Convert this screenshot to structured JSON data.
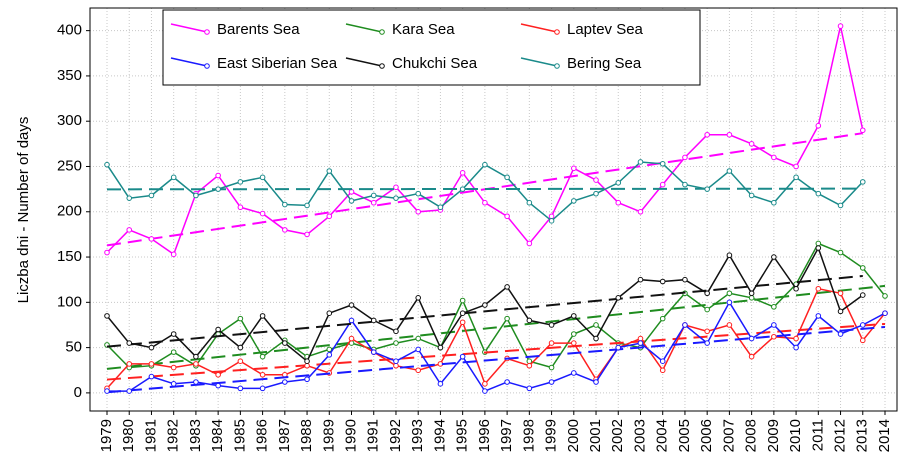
{
  "chart_data": {
    "type": "line",
    "y_label": "Liczba dni - Number of days",
    "categories": [
      "1979",
      "1980",
      "1981",
      "1982",
      "1983",
      "1984",
      "1985",
      "1986",
      "1987",
      "1988",
      "1989",
      "1990",
      "1991",
      "1992",
      "1993",
      "1994",
      "1995",
      "1996",
      "1997",
      "1998",
      "1999",
      "2000",
      "2001",
      "2002",
      "2003",
      "2004",
      "2005",
      "2006",
      "2007",
      "2008",
      "2009",
      "2010",
      "2011",
      "2012",
      "2013",
      "2014"
    ],
    "ylim": [
      -20,
      425
    ],
    "yticks": [
      0,
      50,
      100,
      150,
      200,
      250,
      300,
      350,
      400
    ],
    "grid": true,
    "trend_lines": true,
    "legend": "top",
    "series": [
      {
        "name": "Barents Sea",
        "color": "#ff00ff",
        "values": [
          155,
          180,
          170,
          153,
          220,
          240,
          205,
          198,
          180,
          175,
          195,
          222,
          210,
          227,
          200,
          202,
          243,
          210,
          195,
          165,
          195,
          248,
          235,
          210,
          200,
          230,
          260,
          285,
          285,
          275,
          260,
          250,
          295,
          405,
          290,
          null
        ]
      },
      {
        "name": "Kara Sea",
        "color": "#1f8c1f",
        "values": [
          53,
          28,
          30,
          45,
          30,
          65,
          82,
          40,
          58,
          40,
          48,
          55,
          48,
          55,
          60,
          50,
          102,
          45,
          82,
          35,
          28,
          65,
          75,
          55,
          50,
          82,
          110,
          92,
          110,
          105,
          95,
          120,
          165,
          155,
          138,
          107
        ]
      },
      {
        "name": "Laptev Sea",
        "color": "#ff2020",
        "values": [
          5,
          32,
          32,
          28,
          32,
          20,
          35,
          20,
          20,
          30,
          22,
          60,
          45,
          30,
          25,
          32,
          78,
          10,
          38,
          30,
          55,
          55,
          15,
          50,
          60,
          25,
          75,
          68,
          75,
          40,
          62,
          60,
          115,
          110,
          58,
          88
        ]
      },
      {
        "name": "East Siberian Sea",
        "color": "#1a1aff",
        "values": [
          2,
          2,
          18,
          10,
          12,
          8,
          5,
          5,
          12,
          15,
          42,
          80,
          45,
          35,
          48,
          10,
          40,
          2,
          12,
          5,
          12,
          22,
          12,
          50,
          55,
          35,
          75,
          55,
          100,
          60,
          75,
          50,
          85,
          65,
          75,
          88
        ]
      },
      {
        "name": "Chukchi Sea",
        "color": "#111111",
        "values": [
          85,
          55,
          50,
          65,
          40,
          70,
          50,
          85,
          55,
          35,
          88,
          97,
          80,
          68,
          105,
          50,
          88,
          97,
          117,
          80,
          75,
          85,
          60,
          105,
          125,
          123,
          125,
          110,
          152,
          110,
          150,
          115,
          160,
          90,
          108,
          null
        ]
      },
      {
        "name": "Bering Sea",
        "color": "#1a8a8a",
        "values": [
          252,
          215,
          218,
          238,
          218,
          225,
          233,
          238,
          208,
          207,
          245,
          212,
          218,
          215,
          220,
          205,
          225,
          252,
          238,
          210,
          190,
          212,
          220,
          232,
          255,
          253,
          230,
          225,
          245,
          218,
          210,
          238,
          220,
          207,
          233,
          null
        ]
      }
    ]
  }
}
